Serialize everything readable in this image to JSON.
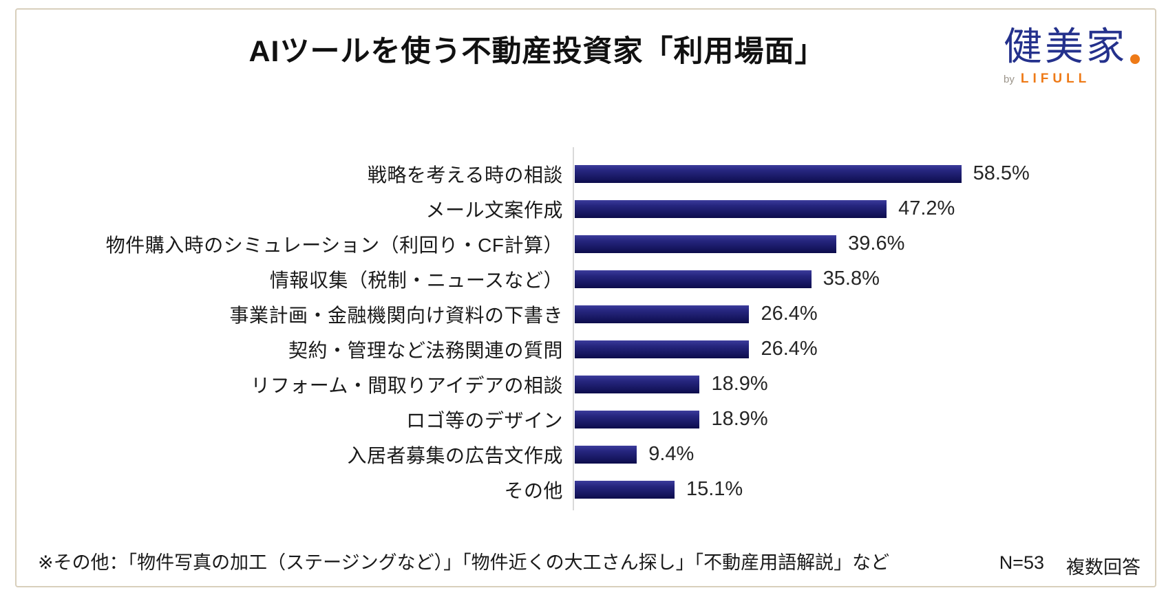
{
  "header": {
    "title": "AIツールを使う不動産投資家「利用場面」",
    "logo": {
      "brand": "健美家",
      "by": "by",
      "company": "LIFULL",
      "brand_color": "#24318c",
      "accent_color": "#ee7a17"
    }
  },
  "chart_data": {
    "type": "bar",
    "orientation": "horizontal",
    "title": "AIツールを使う不動産投資家「利用場面」",
    "categories": [
      "戦略を考える時の相談",
      "メール文案作成",
      "物件購入時のシミュレーション（利回り・CF計算）",
      "情報収集（税制・ニュースなど）",
      "事業計画・金融機関向け資料の下書き",
      "契約・管理など法務関連の質問",
      "リフォーム・間取りアイデアの相談",
      "ロゴ等のデザイン",
      "入居者募集の広告文作成",
      "その他"
    ],
    "values": [
      58.5,
      47.2,
      39.6,
      35.8,
      26.4,
      26.4,
      18.9,
      18.9,
      9.4,
      15.1
    ],
    "value_labels": [
      "58.5%",
      "47.2%",
      "39.6%",
      "35.8%",
      "26.4%",
      "26.4%",
      "18.9%",
      "18.9%",
      "9.4%",
      "15.1%"
    ],
    "unit": "%",
    "xlim": [
      0,
      70
    ],
    "grid": false,
    "legend": false,
    "bar_color": "#1b1b70",
    "axis_line_color": "#d9d9d9"
  },
  "footer": {
    "note": "※その他：「物件写真の加工（ステージングなど）」「物件近くの大工さん探し」「不動産用語解説」など",
    "sample_size": "N=53",
    "response_type": "複数回答"
  }
}
